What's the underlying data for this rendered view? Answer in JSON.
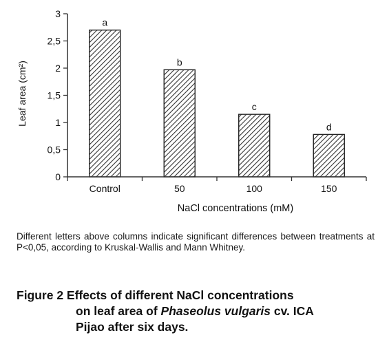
{
  "chart_data": {
    "type": "bar",
    "categories": [
      "Control",
      "50",
      "100",
      "150"
    ],
    "values": [
      2.7,
      1.97,
      1.15,
      0.78
    ],
    "significance_letters": [
      "a",
      "b",
      "c",
      "d"
    ],
    "xlabel": "NaCl concentrations (mM)",
    "ylabel": "Leaf area (cm²)",
    "ylim": [
      0,
      3
    ],
    "yticks": [
      "0",
      "0,5",
      "1",
      "1,5",
      "2",
      "2,5",
      "3"
    ],
    "grid": false,
    "legend": "none",
    "bar_fill": "diagonal hatch",
    "colors": {
      "bar_stroke": "#222222",
      "hatch": "#333333",
      "axis": "#333333"
    }
  },
  "note": "Different letters above columns indicate significant differences between treatments at P<0,05, according to Kruskal-Wallis and Mann Whitney.",
  "caption": {
    "line1": "Figure 2 Effects of different NaCl concentrations",
    "line2_pre": "on leaf area of ",
    "line2_italic": "Phaseolus vulgaris",
    "line2_post": " cv. ICA",
    "line3": "Pijao after six days."
  }
}
